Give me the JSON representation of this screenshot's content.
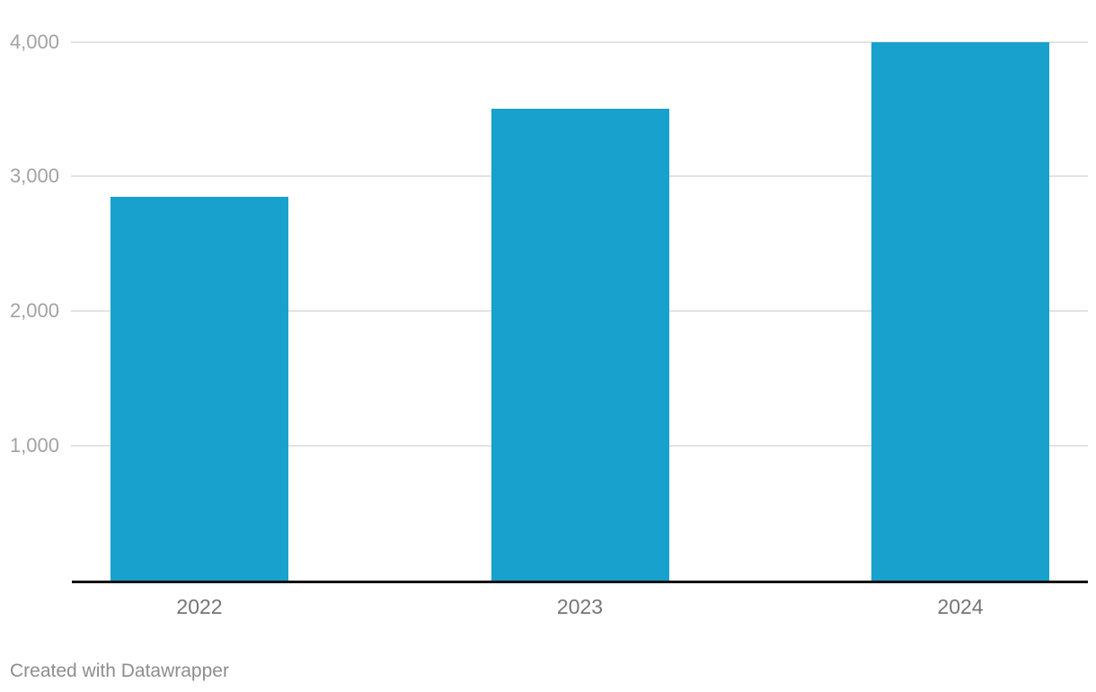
{
  "chart_data": {
    "type": "bar",
    "categories": [
      "2022",
      "2023",
      "2024"
    ],
    "values": [
      2850,
      3500,
      4000
    ],
    "title": "",
    "xlabel": "",
    "ylabel": "",
    "ylim": [
      0,
      4000
    ],
    "yticks": [
      1000,
      2000,
      3000,
      4000
    ],
    "ytick_labels": [
      "1,000",
      "2,000",
      "3,000",
      "4,000"
    ],
    "grid": true,
    "legend": "none",
    "bar_color": "#18a1cd"
  },
  "colors": {
    "background": "#ffffff",
    "bar": "#18a1cd",
    "gridline": "#e3e3e3",
    "axis_line": "#141414",
    "y_tick_label": "#a2a2a2",
    "x_label": "#757575",
    "attribution": "#8d8d8d"
  },
  "attribution": {
    "text": "Created with Datawrapper"
  }
}
